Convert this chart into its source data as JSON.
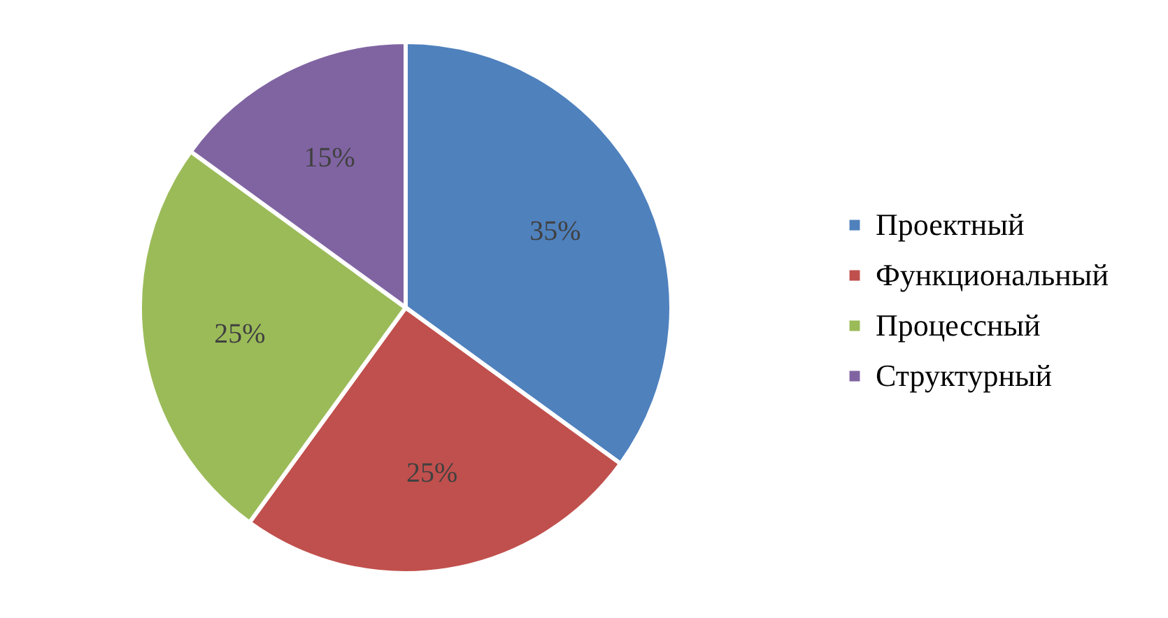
{
  "chart_data": {
    "type": "pie",
    "categories": [
      "Проектный",
      "Функциональный",
      "Процессный",
      "Структурный"
    ],
    "values": [
      35,
      25,
      25,
      15
    ],
    "colors": [
      "#4f81bd",
      "#c0504d",
      "#9bbb59",
      "#8064a2"
    ],
    "value_labels": [
      "35%",
      "25%",
      "25%",
      "15%"
    ],
    "legend": "right"
  }
}
